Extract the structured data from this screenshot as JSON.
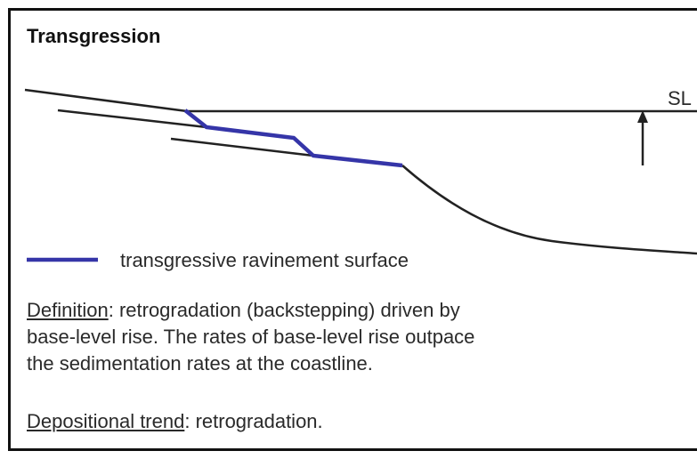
{
  "title": "Transgression",
  "sea_level_label": "SL",
  "legend": {
    "label": "transgressive ravinement surface"
  },
  "definition": {
    "term": "Definition",
    "lines": [
      ": retrogradation (backstepping) driven by",
      "base-level rise. The rates of base-level rise outpace",
      "the sedimentation rates at the coastline."
    ]
  },
  "depositional_trend": {
    "term": "Depositional trend",
    "text": ": retrogradation."
  }
}
